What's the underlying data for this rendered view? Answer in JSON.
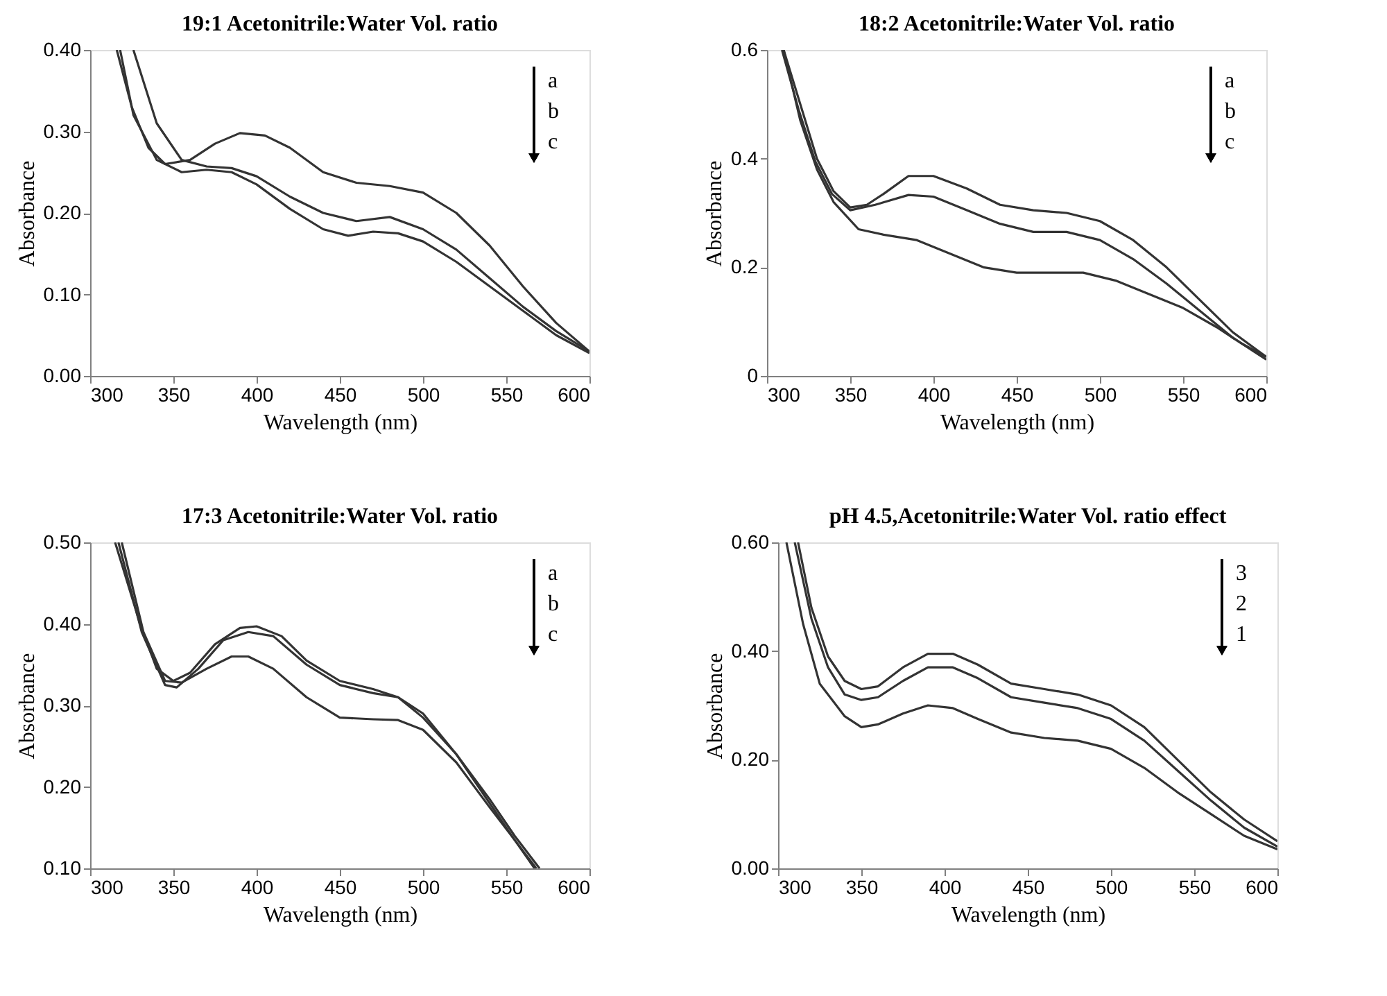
{
  "chart_data": [
    {
      "type": "line",
      "title": "19:1 Acetonitrile:Water Vol. ratio",
      "xlabel": "Wavelength (nm)",
      "ylabel": "Absorbance",
      "annotations": [
        "a",
        "b",
        "c"
      ],
      "xlim": [
        300,
        600
      ],
      "xticks": [
        300,
        350,
        400,
        450,
        500,
        550,
        600
      ],
      "ylim": [
        0,
        0.4
      ],
      "yticks": [
        {
          "value": 0,
          "label": "0.00"
        },
        {
          "value": 0.1,
          "label": "0.10"
        },
        {
          "value": 0.2,
          "label": "0.20"
        },
        {
          "value": 0.3,
          "label": "0.30"
        },
        {
          "value": 0.4,
          "label": "0.40"
        }
      ],
      "grid": false,
      "line_style": "solid",
      "marker": "none",
      "series": [
        {
          "color": "#333333",
          "x": [
            316,
            325,
            335,
            345,
            360,
            375,
            390,
            405,
            420,
            440,
            460,
            480,
            500,
            520,
            540,
            560,
            580,
            600
          ],
          "values": [
            0.4,
            0.33,
            0.28,
            0.26,
            0.265,
            0.285,
            0.298,
            0.295,
            0.28,
            0.25,
            0.237,
            0.233,
            0.225,
            0.2,
            0.16,
            0.11,
            0.065,
            0.03
          ]
        },
        {
          "color": "#333333",
          "x": [
            326,
            340,
            355,
            370,
            385,
            400,
            420,
            440,
            460,
            480,
            500,
            520,
            540,
            560,
            580,
            600
          ],
          "values": [
            0.4,
            0.31,
            0.265,
            0.257,
            0.255,
            0.245,
            0.22,
            0.2,
            0.19,
            0.195,
            0.18,
            0.155,
            0.12,
            0.085,
            0.055,
            0.03
          ]
        },
        {
          "color": "#333333",
          "x": [
            318,
            326,
            340,
            355,
            370,
            385,
            400,
            420,
            440,
            455,
            470,
            485,
            500,
            520,
            540,
            560,
            580,
            600
          ],
          "values": [
            0.4,
            0.32,
            0.265,
            0.25,
            0.253,
            0.25,
            0.235,
            0.205,
            0.18,
            0.172,
            0.177,
            0.175,
            0.165,
            0.14,
            0.11,
            0.08,
            0.05,
            0.028
          ]
        }
      ]
    },
    {
      "type": "line",
      "title": "18:2 Acetonitrile:Water Vol. ratio",
      "xlabel": "Wavelength (nm)",
      "ylabel": "Absorbance",
      "annotations": [
        "a",
        "b",
        "c"
      ],
      "xlim": [
        300,
        600
      ],
      "xticks": [
        300,
        350,
        400,
        450,
        500,
        550,
        600
      ],
      "ylim": [
        0,
        0.6
      ],
      "yticks": [
        {
          "value": 0,
          "label": "0"
        },
        0.2,
        0.4,
        0.6
      ],
      "grid": false,
      "line_style": "solid",
      "marker": "none",
      "series": [
        {
          "color": "#333333",
          "x": [
            310,
            320,
            330,
            340,
            350,
            360,
            370,
            385,
            400,
            420,
            440,
            460,
            480,
            500,
            520,
            540,
            560,
            580,
            600
          ],
          "values": [
            0.6,
            0.5,
            0.4,
            0.34,
            0.31,
            0.315,
            0.335,
            0.368,
            0.368,
            0.345,
            0.315,
            0.305,
            0.3,
            0.285,
            0.25,
            0.2,
            0.14,
            0.08,
            0.035
          ]
        },
        {
          "color": "#333333",
          "x": [
            309,
            319,
            329,
            339,
            350,
            365,
            385,
            400,
            420,
            440,
            460,
            480,
            500,
            520,
            540,
            560,
            580,
            600
          ],
          "values": [
            0.6,
            0.49,
            0.395,
            0.335,
            0.305,
            0.315,
            0.333,
            0.33,
            0.305,
            0.28,
            0.265,
            0.265,
            0.25,
            0.215,
            0.17,
            0.12,
            0.07,
            0.03
          ]
        },
        {
          "color": "#333333",
          "x": [
            310,
            320,
            330,
            340,
            355,
            370,
            390,
            410,
            430,
            450,
            470,
            490,
            510,
            530,
            550,
            570,
            585,
            600
          ],
          "values": [
            0.6,
            0.47,
            0.38,
            0.32,
            0.27,
            0.26,
            0.25,
            0.225,
            0.2,
            0.19,
            0.19,
            0.19,
            0.175,
            0.15,
            0.125,
            0.09,
            0.06,
            0.035
          ]
        }
      ]
    },
    {
      "type": "line",
      "title": "17:3 Acetonitrile:Water Vol. ratio",
      "xlabel": "Wavelength (nm)",
      "ylabel": "Absorbance",
      "annotations": [
        "a",
        "b",
        "c"
      ],
      "xlim": [
        300,
        600
      ],
      "xticks": [
        300,
        350,
        400,
        450,
        500,
        550,
        600
      ],
      "ylim": [
        0.1,
        0.5
      ],
      "yticks": [
        {
          "value": 0.1,
          "label": "0.10"
        },
        {
          "value": 0.2,
          "label": "0.20"
        },
        {
          "value": 0.3,
          "label": "0.30"
        },
        {
          "value": 0.4,
          "label": "0.40"
        },
        {
          "value": 0.5,
          "label": "0.50"
        }
      ],
      "grid": false,
      "line_style": "solid",
      "marker": "none",
      "series": [
        {
          "color": "#333333",
          "x": [
            315,
            330,
            340,
            350,
            360,
            375,
            390,
            400,
            415,
            430,
            450,
            470,
            485,
            500,
            520,
            540,
            555,
            570
          ],
          "values": [
            0.5,
            0.4,
            0.345,
            0.33,
            0.34,
            0.375,
            0.395,
            0.397,
            0.385,
            0.355,
            0.33,
            0.32,
            0.31,
            0.29,
            0.24,
            0.185,
            0.14,
            0.1
          ]
        },
        {
          "color": "#333333",
          "x": [
            317,
            331,
            345,
            352,
            365,
            380,
            395,
            410,
            430,
            450,
            470,
            485,
            500,
            520,
            540,
            555,
            568
          ],
          "values": [
            0.5,
            0.39,
            0.325,
            0.322,
            0.345,
            0.38,
            0.39,
            0.385,
            0.35,
            0.325,
            0.315,
            0.31,
            0.285,
            0.24,
            0.18,
            0.135,
            0.1
          ]
        },
        {
          "color": "#333333",
          "x": [
            319,
            332,
            345,
            355,
            370,
            385,
            395,
            410,
            430,
            450,
            470,
            485,
            500,
            520,
            540,
            555,
            567
          ],
          "values": [
            0.5,
            0.39,
            0.33,
            0.328,
            0.345,
            0.36,
            0.36,
            0.345,
            0.31,
            0.285,
            0.283,
            0.282,
            0.27,
            0.23,
            0.175,
            0.135,
            0.1
          ]
        }
      ]
    },
    {
      "type": "line",
      "title": "pH 4.5,Acetonitrile:Water Vol. ratio effect",
      "xlabel": "Wavelength (nm)",
      "ylabel": "Absorbance",
      "annotations": [
        "3",
        "2",
        "1"
      ],
      "xlim": [
        300,
        600
      ],
      "xticks": [
        300,
        350,
        400,
        450,
        500,
        550,
        600
      ],
      "ylim": [
        0,
        0.6
      ],
      "yticks": [
        {
          "value": 0,
          "label": "0.00"
        },
        {
          "value": 0.2,
          "label": "0.20"
        },
        {
          "value": 0.4,
          "label": "0.40"
        },
        {
          "value": 0.6,
          "label": "0.60"
        }
      ],
      "grid": false,
      "line_style": "solid",
      "marker": "none",
      "series": [
        {
          "color": "#333333",
          "x": [
            312,
            320,
            330,
            340,
            350,
            360,
            375,
            390,
            405,
            420,
            440,
            460,
            480,
            500,
            520,
            540,
            560,
            580,
            600
          ],
          "values": [
            0.6,
            0.48,
            0.39,
            0.345,
            0.33,
            0.335,
            0.37,
            0.395,
            0.395,
            0.375,
            0.34,
            0.33,
            0.32,
            0.3,
            0.26,
            0.2,
            0.14,
            0.09,
            0.05
          ]
        },
        {
          "color": "#333333",
          "x": [
            310,
            320,
            330,
            340,
            350,
            360,
            375,
            390,
            405,
            420,
            440,
            460,
            480,
            500,
            520,
            540,
            560,
            580,
            600
          ],
          "values": [
            0.6,
            0.46,
            0.37,
            0.32,
            0.31,
            0.315,
            0.345,
            0.37,
            0.37,
            0.35,
            0.315,
            0.305,
            0.295,
            0.275,
            0.235,
            0.18,
            0.125,
            0.075,
            0.04
          ]
        },
        {
          "color": "#333333",
          "x": [
            305,
            315,
            325,
            340,
            350,
            360,
            375,
            390,
            405,
            420,
            440,
            460,
            480,
            500,
            520,
            540,
            560,
            580,
            600
          ],
          "values": [
            0.6,
            0.45,
            0.34,
            0.28,
            0.26,
            0.265,
            0.285,
            0.3,
            0.295,
            0.275,
            0.25,
            0.24,
            0.235,
            0.22,
            0.185,
            0.14,
            0.1,
            0.06,
            0.035
          ]
        }
      ]
    }
  ]
}
